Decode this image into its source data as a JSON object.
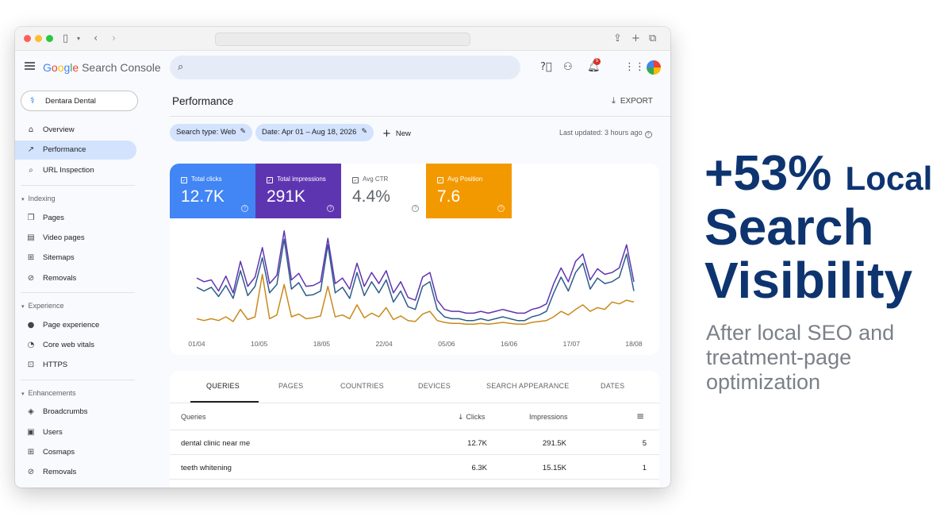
{
  "browser": {
    "icons": [
      "sidebar-toggle-icon",
      "chevron-down-icon",
      "back-icon",
      "forward-icon",
      "share-icon",
      "new-tab-icon",
      "tabs-overview-icon"
    ]
  },
  "header": {
    "app_name": "Search Console",
    "logo_letters": [
      "G",
      "o",
      "o",
      "g",
      "l",
      "e"
    ],
    "icons": [
      "search-icon",
      "help-icon",
      "manage-users-icon",
      "notifications-icon",
      "apps-grid-icon",
      "avatar"
    ],
    "notification_count": "5"
  },
  "property": {
    "name": "Dentara Dental"
  },
  "sidebar": {
    "top_items": [
      {
        "label": "Overview",
        "icon": "home-icon",
        "active": false
      },
      {
        "label": "Performance",
        "icon": "trending-up-icon",
        "active": true
      },
      {
        "label": "URL Inspection",
        "icon": "search-icon",
        "active": false
      }
    ],
    "sections": [
      {
        "title": "Indexing",
        "items": [
          {
            "label": "Pages",
            "icon": "pages-icon"
          },
          {
            "label": "Video pages",
            "icon": "video-pages-icon"
          },
          {
            "label": "Sitemaps",
            "icon": "sitemap-icon"
          },
          {
            "label": "Removals",
            "icon": "removals-icon"
          }
        ]
      },
      {
        "title": "Experience",
        "items": [
          {
            "label": "Page experience",
            "icon": "page-experience-icon"
          },
          {
            "label": "Core web vitals",
            "icon": "speed-icon"
          },
          {
            "label": "HTTPS",
            "icon": "lock-icon"
          }
        ]
      },
      {
        "title": "Enhancements",
        "items": [
          {
            "label": "Broadcrumbs",
            "icon": "layers-icon"
          },
          {
            "label": "Users",
            "icon": "users-icon"
          },
          {
            "label": "Cosmaps",
            "icon": "sitemap-icon"
          },
          {
            "label": "Removals",
            "icon": "removals-icon"
          }
        ]
      }
    ]
  },
  "main": {
    "title": "Performance",
    "export_label": "EXPORT",
    "filters": {
      "search_type": "Search type: Web",
      "date": "Date: Apr 01 – Aug 18, 2026",
      "new_label": "New"
    },
    "last_updated": "Last updated: 3 hours ago"
  },
  "metrics": [
    {
      "label": "Total clicks",
      "value": "12.7K",
      "color": "#4285f4",
      "active": true
    },
    {
      "label": "Total impressions",
      "value": "291K",
      "color": "#5e35b1",
      "active": true
    },
    {
      "label": "Avg CTR",
      "value": "4.4%",
      "color": "#ffffff",
      "active": false
    },
    {
      "label": "Avg Position",
      "value": "7.6",
      "color": "#f29900",
      "active": true
    }
  ],
  "chart_data": {
    "type": "line",
    "x_ticks": [
      "01/04",
      "10/05",
      "18/05",
      "22/04",
      "05/06",
      "16/06",
      "17/07",
      "18/08"
    ],
    "y_scale": "relative (no axis values shown)",
    "series": [
      {
        "color": "#2d5d8a",
        "values": [
          44,
          40,
          44,
          34,
          46,
          32,
          62,
          35,
          45,
          76,
          38,
          47,
          96,
          42,
          49,
          35,
          36,
          40,
          90,
          38,
          44,
          32,
          60,
          35,
          50,
          38,
          52,
          28,
          40,
          23,
          20,
          45,
          50,
          20,
          12,
          10,
          10,
          8,
          8,
          10,
          8,
          10,
          12,
          10,
          8,
          8,
          12,
          14,
          18,
          38,
          55,
          40,
          60,
          70,
          42,
          54,
          48,
          50,
          55,
          80,
          40
        ]
      },
      {
        "color": "#5e35b1",
        "values": [
          54,
          50,
          52,
          40,
          56,
          38,
          72,
          45,
          55,
          87,
          48,
          57,
          105,
          52,
          59,
          45,
          46,
          50,
          97,
          48,
          54,
          42,
          70,
          45,
          60,
          48,
          62,
          38,
          50,
          33,
          30,
          55,
          60,
          30,
          20,
          18,
          18,
          16,
          16,
          18,
          16,
          18,
          20,
          18,
          16,
          16,
          20,
          22,
          26,
          48,
          65,
          50,
          72,
          80,
          52,
          64,
          58,
          60,
          65,
          90,
          50
        ]
      },
      {
        "color": "#c98a1c",
        "values": [
          10,
          8,
          10,
          8,
          12,
          7,
          20,
          9,
          12,
          58,
          10,
          14,
          47,
          12,
          15,
          10,
          11,
          13,
          45,
          12,
          14,
          10,
          25,
          11,
          16,
          12,
          22,
          9,
          13,
          8,
          7,
          15,
          18,
          8,
          6,
          5,
          5,
          4,
          4,
          5,
          4,
          5,
          6,
          5,
          4,
          4,
          6,
          7,
          8,
          12,
          18,
          14,
          20,
          25,
          18,
          22,
          20,
          28,
          26,
          30,
          28
        ]
      }
    ]
  },
  "table": {
    "tabs": [
      "QUERIES",
      "PAGES",
      "COUNTRIES",
      "DEVICES",
      "SEARCH APPEARANCE",
      "DATES"
    ],
    "headers": {
      "query": "Queries",
      "clicks": "Clicks",
      "impressions": "Impressions"
    },
    "rows": [
      {
        "query": "dental clinic near me",
        "clicks": "12.7K",
        "impressions": "291.5K",
        "position": "5"
      },
      {
        "query": "teeth whitening",
        "clicks": "6.3K",
        "impressions": "15.15K",
        "position": "1"
      }
    ]
  },
  "promo": {
    "big": "+53%",
    "small": "Local",
    "line2": "Search",
    "line3": "Visibility",
    "subtitle": "After local SEO and treatment-page optimization",
    "color": "#0e3470"
  }
}
